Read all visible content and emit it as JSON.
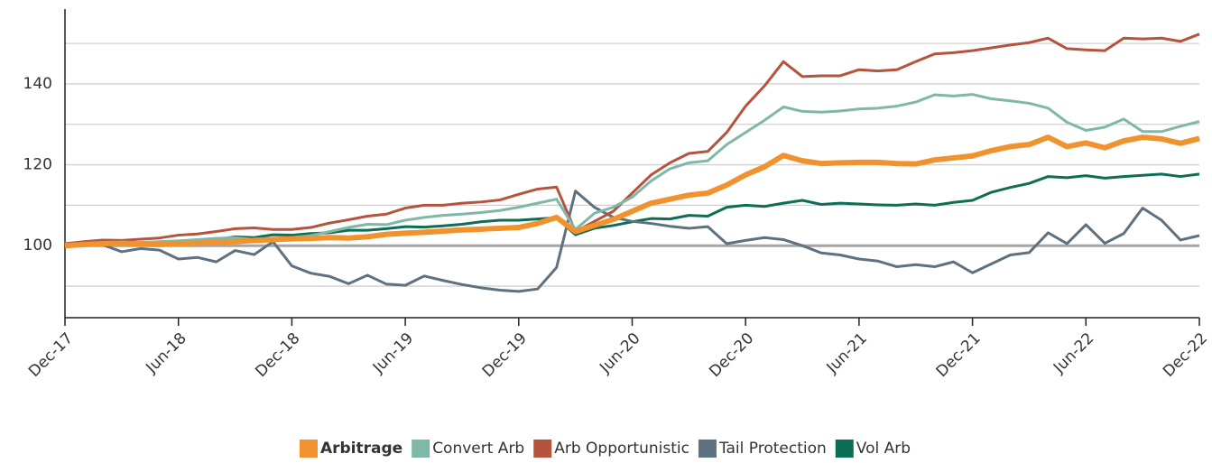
{
  "chart_data": {
    "type": "line",
    "categories": [
      "Dec-17",
      null,
      null,
      null,
      null,
      null,
      "Jun-18",
      null,
      null,
      null,
      null,
      null,
      "Dec-18",
      null,
      null,
      null,
      null,
      null,
      "Jun-19",
      null,
      null,
      null,
      null,
      null,
      "Dec-19",
      null,
      null,
      null,
      null,
      null,
      "Jun-20",
      null,
      null,
      null,
      null,
      null,
      "Dec-20",
      null,
      null,
      null,
      null,
      null,
      "Jun-21",
      null,
      null,
      null,
      null,
      null,
      "Dec-21",
      null,
      null,
      null,
      null,
      null,
      "Jun-22",
      null,
      null,
      null,
      null,
      null,
      "Dec-22"
    ],
    "series": [
      {
        "name": "Arbitrage",
        "color": "#f0922e",
        "highlight": true,
        "values": [
          100,
          100.3,
          100.5,
          100.6,
          100.4,
          100.3,
          100.5,
          100.6,
          100.8,
          101,
          101.3,
          101.5,
          101.7,
          101.8,
          102,
          101.9,
          102.2,
          102.8,
          103.1,
          103.3,
          103.6,
          103.9,
          104.1,
          104.3,
          104.5,
          105.5,
          107,
          103.5,
          105,
          106.5,
          108.5,
          110.5,
          111.5,
          112.5,
          113,
          115,
          117.5,
          119.5,
          122.3,
          121,
          120.3,
          120.5,
          120.6,
          120.6,
          120.3,
          120.2,
          121.2,
          121.7,
          122.2,
          123.5,
          124.5,
          125,
          126.8,
          124.5,
          125.4,
          124.2,
          125.9,
          126.8,
          126.4,
          125.3,
          126.5
        ]
      },
      {
        "name": "Convert Arb",
        "color": "#7fb7a8",
        "values": [
          100,
          100.4,
          100.6,
          100.5,
          100.8,
          101,
          101.2,
          101.5,
          101.8,
          102,
          101.5,
          101.8,
          102,
          102.5,
          103.5,
          104.5,
          105.3,
          105.2,
          106.3,
          107,
          107.5,
          107.8,
          108.2,
          108.7,
          109.5,
          110.5,
          111.5,
          104,
          108,
          109.5,
          112,
          116,
          119,
          120.5,
          121,
          125,
          128,
          131,
          134.3,
          133.2,
          133,
          133.3,
          133.8,
          134,
          134.5,
          135.5,
          137.3,
          137,
          137.4,
          136.3,
          135.8,
          135.2,
          134,
          130.5,
          128.5,
          129.3,
          131.3,
          128.2,
          128.2,
          129.5,
          130.7
        ]
      },
      {
        "name": "Arb Opportunistic",
        "color": "#b5533c",
        "values": [
          100.5,
          101,
          101.4,
          101.3,
          101.6,
          101.9,
          102.6,
          102.9,
          103.5,
          104.2,
          104.4,
          104,
          104,
          104.5,
          105.6,
          106.4,
          107.3,
          107.8,
          109.3,
          110,
          110,
          110.5,
          110.8,
          111.3,
          112.7,
          114,
          114.5,
          103.5,
          106,
          108.5,
          113,
          117.5,
          120.5,
          122.8,
          123.3,
          128,
          134.5,
          139.5,
          145.5,
          141.8,
          142,
          142,
          143.5,
          143.2,
          143.5,
          145.5,
          147.4,
          147.7,
          148.2,
          148.9,
          149.6,
          150.2,
          151.3,
          148.7,
          148.4,
          148.2,
          151.3,
          151.1,
          151.3,
          150.5,
          152.3
        ]
      },
      {
        "name": "Tail Protection",
        "color": "#5f717e",
        "values": [
          100,
          100,
          100.2,
          98.5,
          99.3,
          98.9,
          96.7,
          97.1,
          96,
          98.8,
          97.8,
          101,
          95,
          93.2,
          92.4,
          90.6,
          92.7,
          90.5,
          90.2,
          92.5,
          91.4,
          90.4,
          89.6,
          89,
          88.7,
          89.3,
          94.6,
          113.5,
          109.5,
          107,
          106,
          105.5,
          104.8,
          104.3,
          104.7,
          100.5,
          101.3,
          102,
          101.5,
          100,
          98.2,
          97.7,
          96.7,
          96.2,
          94.8,
          95.3,
          94.8,
          96,
          93.3,
          95.5,
          97.7,
          98.3,
          103.2,
          100.5,
          105.2,
          100.6,
          103,
          109.3,
          106.3,
          101.4,
          102.5
        ]
      },
      {
        "name": "Vol Arb",
        "color": "#0e6e55",
        "values": [
          100,
          100.1,
          100.2,
          100.3,
          100.5,
          100.6,
          100.8,
          101.2,
          101.5,
          102.2,
          102,
          102.7,
          102.6,
          103,
          103.2,
          103.8,
          103.8,
          104.2,
          104.7,
          104.6,
          104.9,
          105.3,
          105.9,
          106.3,
          106.3,
          106.6,
          106.9,
          102.7,
          104.3,
          105,
          105.9,
          106.7,
          106.6,
          107.5,
          107.3,
          109.5,
          110,
          109.7,
          110.5,
          111.2,
          110.2,
          110.5,
          110.3,
          110.1,
          110,
          110.3,
          110,
          110.7,
          111.2,
          113.2,
          114.4,
          115.4,
          117.1,
          116.8,
          117.3,
          116.7,
          117.1,
          117.4,
          117.7,
          117.1,
          117.7
        ]
      }
    ],
    "ylim": [
      82.2,
      158.5
    ],
    "yticks": [
      100,
      120,
      140
    ],
    "y_minor_ticks": [
      90,
      110,
      130,
      150
    ],
    "baseline": 100,
    "grid": true,
    "legend": "bottom"
  }
}
